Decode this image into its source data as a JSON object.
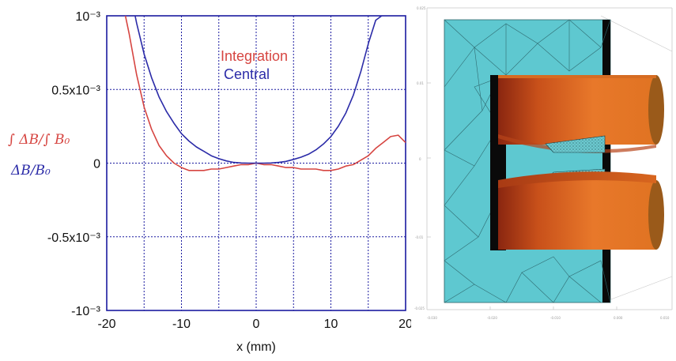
{
  "chart_data": {
    "type": "line",
    "xlabel": "x (mm)",
    "ylabel_series_1": "∫ ΔB/∫ B₀",
    "ylabel_series_2": "ΔB/B₀",
    "xlim": [
      -20,
      20
    ],
    "ylim": [
      -0.001,
      0.001
    ],
    "grid": true,
    "legend_position": "top-center",
    "x_tick_labels": [
      "-20",
      "-10",
      "0",
      "10",
      "20"
    ],
    "y_tick_labels": [
      "10⁻³",
      "0.5x10⁻³",
      "0",
      "-0.5x10⁻³",
      "-10⁻³"
    ],
    "series": [
      {
        "name": "Integration",
        "color": "#d64541",
        "x": [
          -17.5,
          -17,
          -16,
          -15,
          -14,
          -13,
          -12,
          -11,
          -10,
          -9,
          -8,
          -7,
          -6,
          -5,
          -4,
          -3,
          -2,
          -1,
          0,
          1,
          2,
          3,
          4,
          5,
          6,
          7,
          8,
          9,
          10,
          11,
          12,
          13,
          14,
          15,
          16,
          17,
          18,
          19,
          20
        ],
        "y": [
          0.001,
          0.00088,
          0.0006,
          0.00038,
          0.00023,
          0.00012,
          5e-05,
          0.0,
          -3e-05,
          -5e-05,
          -5e-05,
          -5e-05,
          -4e-05,
          -4e-05,
          -3e-05,
          -2e-05,
          -1e-05,
          -1e-05,
          0.0,
          -1e-05,
          -1e-05,
          -2e-05,
          -3e-05,
          -3e-05,
          -4e-05,
          -4e-05,
          -4e-05,
          -5e-05,
          -5e-05,
          -4e-05,
          -2e-05,
          -1e-05,
          2e-05,
          5e-05,
          0.0001,
          0.00014,
          0.00018,
          0.00019,
          0.00014
        ]
      },
      {
        "name": "Central",
        "color": "#2b2ba8",
        "x": [
          -16.2,
          -16,
          -15,
          -14,
          -13,
          -12,
          -11,
          -10,
          -9,
          -8,
          -7,
          -6,
          -5,
          -4,
          -3,
          -2,
          -1,
          0,
          1,
          2,
          3,
          4,
          5,
          6,
          7,
          8,
          9,
          10,
          11,
          12,
          13,
          14,
          15,
          16,
          16.8
        ],
        "y": [
          0.001,
          0.00095,
          0.00074,
          0.00058,
          0.00045,
          0.00035,
          0.00027,
          0.0002,
          0.00015,
          0.00011,
          8e-05,
          5e-05,
          3e-05,
          1.5e-05,
          5e-06,
          1e-06,
          0.0,
          0.0,
          0.0,
          1e-06,
          5e-06,
          1.2e-05,
          2.5e-05,
          4e-05,
          6e-05,
          9e-05,
          0.00013,
          0.00018,
          0.00025,
          0.00034,
          0.00046,
          0.00062,
          0.00081,
          0.00097,
          0.001
        ]
      }
    ]
  }
}
